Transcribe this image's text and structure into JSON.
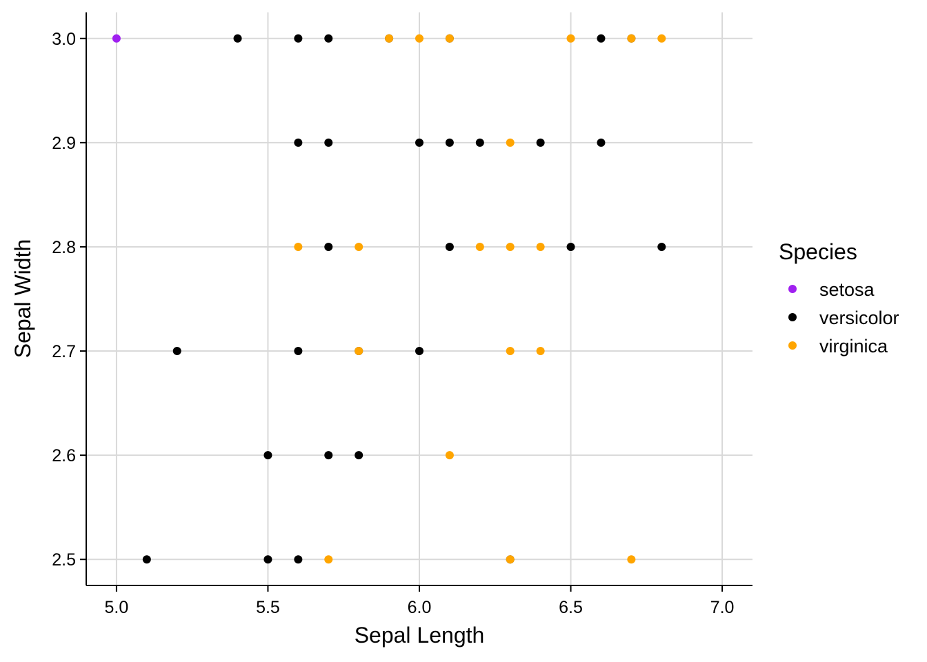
{
  "chart_data": {
    "type": "scatter",
    "title": "",
    "xlabel": "Sepal Length",
    "ylabel": "Sepal Width",
    "xlim": [
      4.9,
      7.1
    ],
    "ylim": [
      2.475,
      3.025
    ],
    "x_ticks": [
      {
        "value": 5.0,
        "label": "5.0"
      },
      {
        "value": 5.5,
        "label": "5.5"
      },
      {
        "value": 6.0,
        "label": "6.0"
      },
      {
        "value": 6.5,
        "label": "6.5"
      },
      {
        "value": 7.0,
        "label": "7.0"
      }
    ],
    "y_ticks": [
      {
        "value": 2.5,
        "label": "2.5"
      },
      {
        "value": 2.6,
        "label": "2.6"
      },
      {
        "value": 2.7,
        "label": "2.7"
      },
      {
        "value": 2.8,
        "label": "2.8"
      },
      {
        "value": 2.9,
        "label": "2.9"
      },
      {
        "value": 3.0,
        "label": "3.0"
      }
    ],
    "grid": true,
    "legend": {
      "title": "Species",
      "placement": "right"
    },
    "series": [
      {
        "name": "versicolor",
        "color": "#000000",
        "points": [
          [
            5.4,
            3.0
          ],
          [
            5.6,
            3.0
          ],
          [
            5.7,
            3.0
          ],
          [
            5.9,
            3.0
          ],
          [
            6.1,
            3.0
          ],
          [
            6.6,
            3.0
          ],
          [
            6.7,
            3.0
          ],
          [
            5.6,
            2.9
          ],
          [
            5.7,
            2.9
          ],
          [
            6.0,
            2.9
          ],
          [
            6.1,
            2.9
          ],
          [
            6.2,
            2.9
          ],
          [
            6.4,
            2.9
          ],
          [
            6.6,
            2.9
          ],
          [
            5.7,
            2.8
          ],
          [
            6.1,
            2.8
          ],
          [
            6.5,
            2.8
          ],
          [
            6.8,
            2.8
          ],
          [
            5.2,
            2.7
          ],
          [
            5.6,
            2.7
          ],
          [
            5.8,
            2.7
          ],
          [
            6.0,
            2.7
          ],
          [
            5.5,
            2.6
          ],
          [
            5.7,
            2.6
          ],
          [
            5.8,
            2.6
          ],
          [
            5.1,
            2.5
          ],
          [
            5.5,
            2.5
          ],
          [
            5.6,
            2.5
          ],
          [
            6.3,
            2.5
          ]
        ]
      },
      {
        "name": "virginica",
        "color": "#FFA500",
        "points": [
          [
            5.9,
            3.0
          ],
          [
            6.0,
            3.0
          ],
          [
            6.1,
            3.0
          ],
          [
            6.5,
            3.0
          ],
          [
            6.7,
            3.0
          ],
          [
            6.8,
            3.0
          ],
          [
            6.3,
            2.9
          ],
          [
            5.6,
            2.8
          ],
          [
            5.8,
            2.8
          ],
          [
            6.2,
            2.8
          ],
          [
            6.3,
            2.8
          ],
          [
            6.4,
            2.8
          ],
          [
            5.8,
            2.7
          ],
          [
            6.3,
            2.7
          ],
          [
            6.4,
            2.7
          ],
          [
            6.1,
            2.6
          ],
          [
            5.7,
            2.5
          ],
          [
            6.3,
            2.5
          ],
          [
            6.7,
            2.5
          ]
        ]
      },
      {
        "name": "setosa",
        "color": "#A020F0",
        "points": [
          [
            5.0,
            3.0
          ]
        ]
      }
    ],
    "legend_order": [
      "setosa",
      "versicolor",
      "virginica"
    ]
  }
}
